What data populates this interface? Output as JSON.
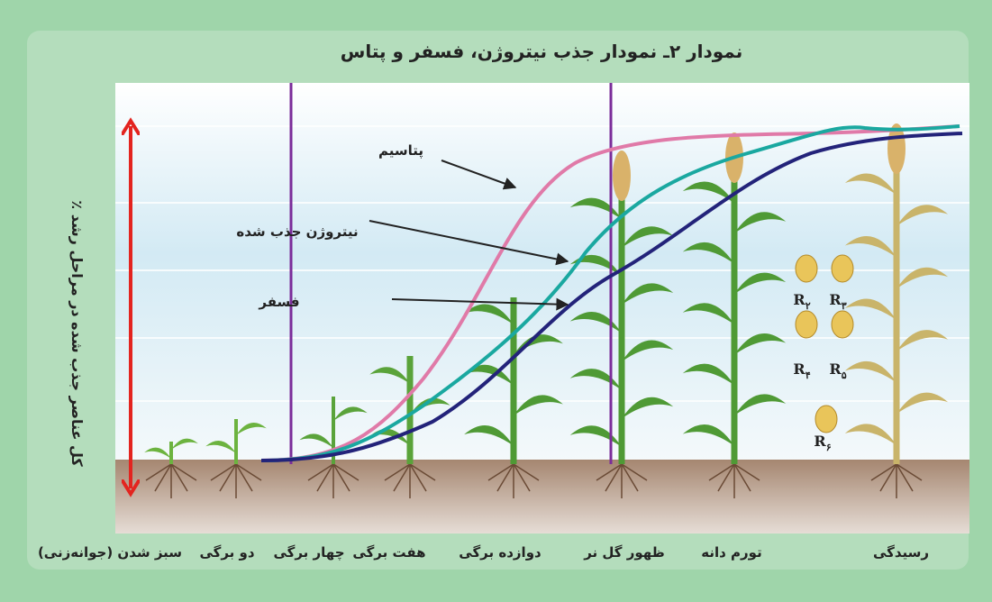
{
  "title": "نمودار ۲ـ نمودار جذب نیتروژن، فسفر و پتاس",
  "y_axis_label": "٪ کل عناصر جذب شده در مراحل رشد",
  "curve_labels": {
    "potassium": "پتاسیم",
    "nitrogen": "نیتروژن جذب شده",
    "phosphorus": "فسفر"
  },
  "stages": [
    "سبز شدن (جوانه‌زنی)",
    "دو برگی",
    "چهار برگی",
    "هفت برگی",
    "دوازده برگی",
    "ظهور گل نر",
    "تورم دانه",
    "رسیدگی"
  ],
  "kernel_labels": [
    {
      "letter": "R",
      "sub": "۲"
    },
    {
      "letter": "R",
      "sub": "۳"
    },
    {
      "letter": "R",
      "sub": "۴"
    },
    {
      "letter": "R",
      "sub": "۵"
    },
    {
      "letter": "R",
      "sub": "۶"
    }
  ]
}
